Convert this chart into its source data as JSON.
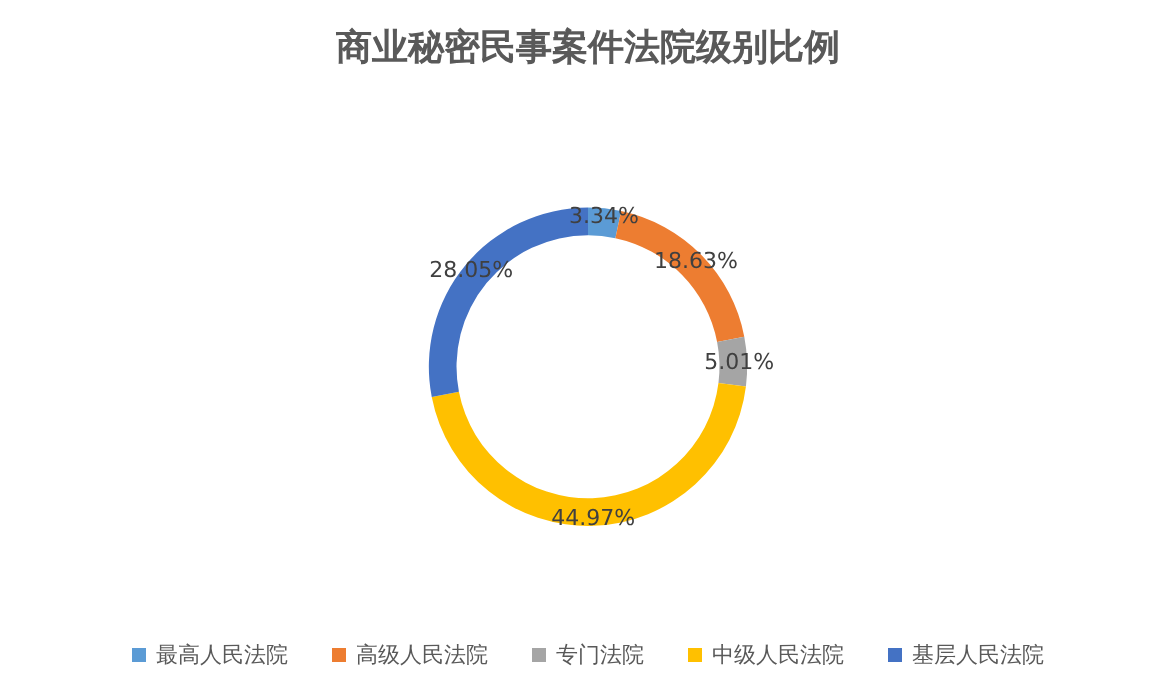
{
  "chart_data": {
    "type": "donut",
    "title": "商业秘密民事案件法院级别比例",
    "categories": [
      "最高人民法院",
      "高级人民法院",
      "专门法院",
      "中级人民法院",
      "基层人民法院"
    ],
    "values": [
      3.34,
      18.63,
      5.01,
      44.97,
      28.05
    ],
    "value_labels": [
      "3.34%",
      "18.63%",
      "5.01%",
      "44.97%",
      "28.05%"
    ],
    "colors": [
      "#5b9bd5",
      "#ed7d31",
      "#a5a5a5",
      "#ffc000",
      "#4472c4"
    ],
    "legend": "bottom"
  }
}
